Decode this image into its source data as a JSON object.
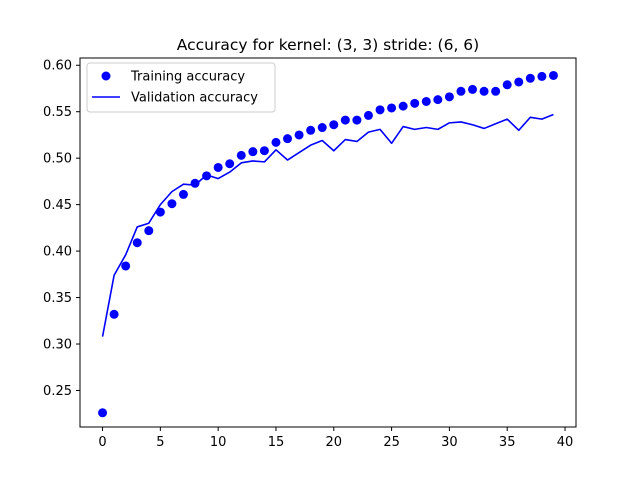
{
  "chart_data": {
    "type": "line",
    "title": "Accuracy for kernel: (3, 3) stride: (6, 6)",
    "xlabel": "",
    "ylabel": "",
    "xlim": [
      -1.95,
      40.95
    ],
    "ylim": [
      0.2107,
      0.6078
    ],
    "x_ticks": [
      0,
      5,
      10,
      15,
      20,
      25,
      30,
      35,
      40
    ],
    "y_ticks": [
      0.25,
      0.3,
      0.35,
      0.4,
      0.45,
      0.5,
      0.55,
      0.6
    ],
    "x_tick_labels": [
      "0",
      "5",
      "10",
      "15",
      "20",
      "25",
      "30",
      "35",
      "40"
    ],
    "y_tick_labels": [
      "0.25",
      "0.30",
      "0.35",
      "0.40",
      "0.45",
      "0.50",
      "0.55",
      "0.60"
    ],
    "grid": false,
    "legend_position": "top-left",
    "x": [
      0,
      1,
      2,
      3,
      4,
      5,
      6,
      7,
      8,
      9,
      10,
      11,
      12,
      13,
      14,
      15,
      16,
      17,
      18,
      19,
      20,
      21,
      22,
      23,
      24,
      25,
      26,
      27,
      28,
      29,
      30,
      31,
      32,
      33,
      34,
      35,
      36,
      37,
      38,
      39
    ],
    "series": [
      {
        "name": "Training accuracy",
        "style": "markers",
        "color": "#0000ff",
        "values": [
          0.226,
          0.332,
          0.384,
          0.409,
          0.422,
          0.442,
          0.451,
          0.461,
          0.473,
          0.481,
          0.49,
          0.494,
          0.503,
          0.507,
          0.508,
          0.517,
          0.521,
          0.525,
          0.53,
          0.533,
          0.536,
          0.541,
          0.541,
          0.546,
          0.552,
          0.554,
          0.556,
          0.559,
          0.561,
          0.563,
          0.566,
          0.572,
          0.574,
          0.572,
          0.572,
          0.579,
          0.582,
          0.586,
          0.588,
          0.589
        ]
      },
      {
        "name": "Validation accuracy",
        "style": "line",
        "color": "#0000ff",
        "values": [
          0.308,
          0.374,
          0.396,
          0.426,
          0.43,
          0.45,
          0.464,
          0.472,
          0.471,
          0.482,
          0.478,
          0.485,
          0.495,
          0.497,
          0.496,
          0.509,
          0.498,
          0.506,
          0.514,
          0.519,
          0.508,
          0.52,
          0.518,
          0.528,
          0.531,
          0.516,
          0.534,
          0.531,
          0.533,
          0.531,
          0.538,
          0.539,
          0.536,
          0.532,
          0.537,
          0.542,
          0.53,
          0.544,
          0.542,
          0.547
        ]
      }
    ]
  }
}
